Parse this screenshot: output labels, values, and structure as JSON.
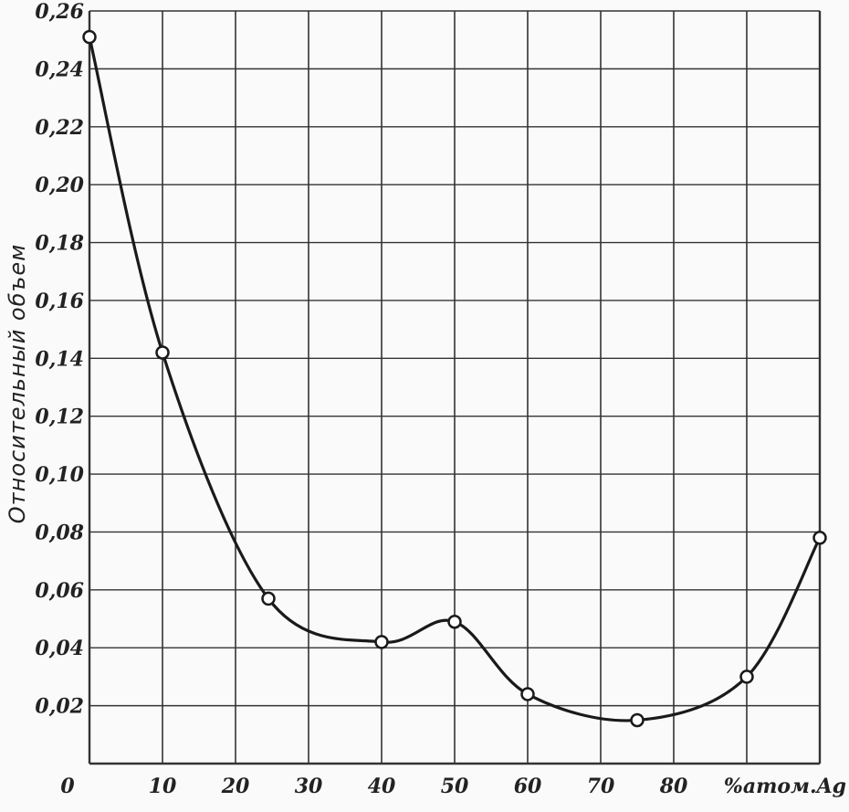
{
  "chart_data": {
    "type": "line",
    "title": "",
    "xlabel": "%атом.Ag",
    "ylabel": "Относительный объем",
    "xlim": [
      0,
      90
    ],
    "ylim": [
      0,
      0.26
    ],
    "x_ticks": [
      "0",
      "10",
      "20",
      "30",
      "40",
      "50",
      "60",
      "70",
      "80"
    ],
    "y_ticks": [
      "0,02",
      "0,04",
      "0,06",
      "0,08",
      "0,10",
      "0,12",
      "0,14",
      "0,16",
      "0,18",
      "0,20",
      "0,22",
      "0,24",
      "0,26"
    ],
    "grid": true,
    "series": [
      {
        "points": [
          {
            "x": 0,
            "y": 0.251
          },
          {
            "x": 10,
            "y": 0.142
          },
          {
            "x": 24.5,
            "y": 0.057
          },
          {
            "x": 40,
            "y": 0.042
          },
          {
            "x": 50,
            "y": 0.049
          },
          {
            "x": 60,
            "y": 0.024
          },
          {
            "x": 75,
            "y": 0.015
          },
          {
            "x": 90,
            "y": 0.03
          },
          {
            "x": 100,
            "y": 0.078
          }
        ]
      }
    ]
  }
}
